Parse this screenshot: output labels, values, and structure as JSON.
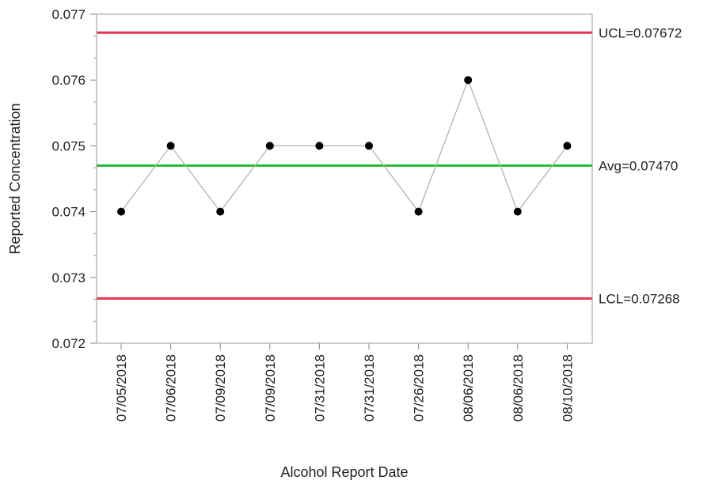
{
  "chart_data": {
    "type": "line",
    "xlabel": "Alcohol Report Date",
    "ylabel": "Reported Concentration",
    "ylim": [
      0.072,
      0.077
    ],
    "yticks": [
      "0.072",
      "0.073",
      "0.074",
      "0.075",
      "0.076",
      "0.077"
    ],
    "categories": [
      "07/05/2018",
      "07/06/2018",
      "07/09/2018",
      "07/09/2018",
      "07/31/2018",
      "07/31/2018",
      "07/26/2018",
      "08/06/2018",
      "08/06/2018",
      "08/10/2018"
    ],
    "values": [
      0.074,
      0.075,
      0.074,
      0.075,
      0.075,
      0.075,
      0.074,
      0.076,
      0.074,
      0.075
    ],
    "limits": [
      {
        "key": "ucl",
        "label": "UCL=0.07672",
        "value": 0.07672,
        "color": "#e8334f"
      },
      {
        "key": "avg",
        "label": "Avg=0.07470",
        "value": 0.0747,
        "color": "#22bb33"
      },
      {
        "key": "lcl",
        "label": "LCL=0.07268",
        "value": 0.07268,
        "color": "#e8334f"
      }
    ],
    "line_color": "#b3b3b3",
    "marker_color": "#000000",
    "grid": false
  }
}
